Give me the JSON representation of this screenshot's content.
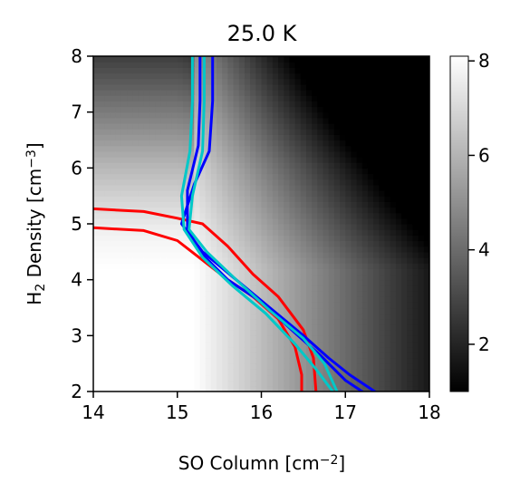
{
  "chart_data": {
    "type": "heatmap",
    "title": "25.0 K",
    "xlabel": "SO Column [cm$^{-2}$]",
    "ylabel": "H$_2$ Density [cm$^{-3}$]",
    "xlim": [
      14,
      18
    ],
    "ylim": [
      2,
      8
    ],
    "x_ticks": [
      14,
      15,
      16,
      17,
      18
    ],
    "y_ticks": [
      2,
      3,
      4,
      5,
      6,
      7,
      8
    ],
    "colormap": "gray",
    "colorbar": {
      "range": [
        1,
        8.1
      ],
      "ticks": [
        2,
        4,
        6,
        8
      ]
    },
    "heatmap_description": "bright (~8) at low column and low density, dark (~1) at high column",
    "contours": [
      {
        "color": "#ff0000",
        "points": [
          [
            14.0,
            5.27
          ],
          [
            14.6,
            5.22
          ],
          [
            15.0,
            5.1
          ],
          [
            15.3,
            5.0
          ],
          [
            15.6,
            4.6
          ],
          [
            15.9,
            4.1
          ],
          [
            16.2,
            3.7
          ],
          [
            16.5,
            3.1
          ],
          [
            16.62,
            2.6
          ],
          [
            16.65,
            2.0
          ]
        ]
      },
      {
        "color": "#ff0000",
        "points": [
          [
            14.0,
            4.93
          ],
          [
            14.6,
            4.88
          ],
          [
            15.0,
            4.7
          ],
          [
            15.3,
            4.35
          ],
          [
            15.6,
            4.0
          ],
          [
            15.9,
            3.7
          ],
          [
            16.2,
            3.3
          ],
          [
            16.4,
            2.8
          ],
          [
            16.48,
            2.3
          ],
          [
            16.48,
            2.0
          ]
        ]
      },
      {
        "color": "#0000ff",
        "points": [
          [
            15.42,
            8.0
          ],
          [
            15.42,
            7.2
          ],
          [
            15.38,
            6.3
          ],
          [
            15.2,
            5.7
          ],
          [
            15.05,
            5.0
          ],
          [
            15.3,
            4.5
          ],
          [
            15.7,
            4.0
          ],
          [
            16.1,
            3.5
          ],
          [
            16.5,
            3.0
          ],
          [
            16.8,
            2.6
          ],
          [
            17.05,
            2.3
          ],
          [
            17.35,
            2.0
          ]
        ]
      },
      {
        "color": "#0000ff",
        "points": [
          [
            15.27,
            8.0
          ],
          [
            15.27,
            7.2
          ],
          [
            15.25,
            6.4
          ],
          [
            15.12,
            5.6
          ],
          [
            15.12,
            4.9
          ],
          [
            15.3,
            4.45
          ],
          [
            15.6,
            4.0
          ],
          [
            16.0,
            3.6
          ],
          [
            16.4,
            3.05
          ],
          [
            16.7,
            2.65
          ],
          [
            17.0,
            2.2
          ],
          [
            17.2,
            2.0
          ]
        ]
      },
      {
        "color": "#00c8c8",
        "points": [
          [
            15.32,
            8.0
          ],
          [
            15.32,
            7.2
          ],
          [
            15.3,
            6.3
          ],
          [
            15.18,
            5.5
          ],
          [
            15.14,
            4.9
          ],
          [
            15.35,
            4.5
          ],
          [
            15.7,
            4.0
          ],
          [
            16.1,
            3.45
          ],
          [
            16.5,
            2.95
          ],
          [
            16.75,
            2.5
          ],
          [
            16.9,
            2.0
          ]
        ]
      },
      {
        "color": "#00c8c8",
        "points": [
          [
            15.18,
            8.0
          ],
          [
            15.18,
            7.2
          ],
          [
            15.15,
            6.3
          ],
          [
            15.05,
            5.5
          ],
          [
            15.08,
            4.9
          ],
          [
            15.3,
            4.4
          ],
          [
            15.65,
            3.9
          ],
          [
            16.05,
            3.4
          ],
          [
            16.4,
            2.85
          ],
          [
            16.65,
            2.4
          ],
          [
            16.85,
            2.0
          ]
        ]
      }
    ]
  }
}
